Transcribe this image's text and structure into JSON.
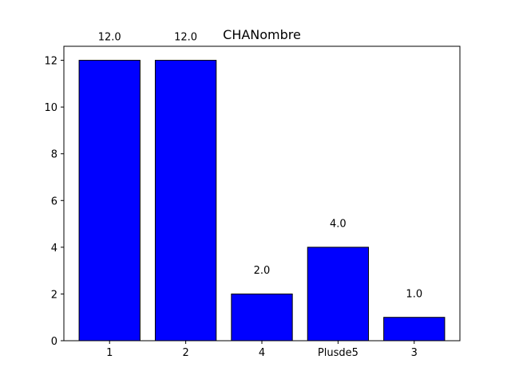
{
  "chart_data": {
    "type": "bar",
    "title": "CHANombre",
    "xlabel": "",
    "ylabel": "",
    "categories": [
      "1",
      "2",
      "4",
      "Plusde5",
      "3"
    ],
    "values": [
      12,
      12,
      2,
      4,
      1
    ],
    "value_labels": [
      "12.0",
      "12.0",
      "2.0",
      "4.0",
      "1.0"
    ],
    "ylim": [
      0,
      12.6
    ],
    "yticks": [
      0,
      2,
      4,
      6,
      8,
      10,
      12
    ],
    "ytick_labels": [
      "0",
      "2",
      "4",
      "6",
      "8",
      "10",
      "12"
    ],
    "bar_color": "#0000ff",
    "bar_edge_color": "#000000",
    "grid": false,
    "legend": "none"
  }
}
